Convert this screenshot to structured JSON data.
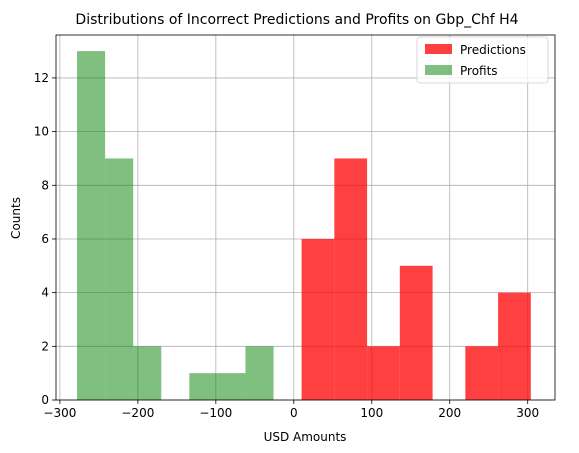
{
  "chart_data": {
    "type": "bar",
    "title": "Distributions of Incorrect Predictions and Profits on Gbp_Chf H4",
    "xlabel": "USD Amounts",
    "ylabel": "Counts",
    "xlim": [
      -305,
      335
    ],
    "ylim": [
      0,
      13.6
    ],
    "xticks": [
      -300,
      -200,
      -100,
      0,
      100,
      200,
      300
    ],
    "xtick_labels": [
      "−300",
      "−200",
      "−100",
      "0",
      "100",
      "200",
      "300"
    ],
    "yticks": [
      0,
      2,
      4,
      6,
      8,
      10,
      12
    ],
    "ytick_labels": [
      "0",
      "2",
      "4",
      "6",
      "8",
      "10",
      "12"
    ],
    "grid": true,
    "legend_position": "top-right",
    "series": [
      {
        "name": "Predictions",
        "color": "#ff0000",
        "alpha": 0.75,
        "bins": [
          {
            "x0": 10,
            "x1": 52,
            "count": 6
          },
          {
            "x0": 52,
            "x1": 94,
            "count": 9
          },
          {
            "x0": 94,
            "x1": 136,
            "count": 2
          },
          {
            "x0": 136,
            "x1": 178,
            "count": 5
          },
          {
            "x0": 178,
            "x1": 220,
            "count": 0
          },
          {
            "x0": 220,
            "x1": 262,
            "count": 2
          },
          {
            "x0": 262,
            "x1": 304,
            "count": 4
          }
        ]
      },
      {
        "name": "Profits",
        "color": "#008000",
        "alpha": 0.5,
        "bins": [
          {
            "x0": -278,
            "x1": -242,
            "count": 13
          },
          {
            "x0": -242,
            "x1": -206,
            "count": 9
          },
          {
            "x0": -206,
            "x1": -170,
            "count": 2
          },
          {
            "x0": -170,
            "x1": -134,
            "count": 0
          },
          {
            "x0": -134,
            "x1": -98,
            "count": 1
          },
          {
            "x0": -98,
            "x1": -62,
            "count": 1
          },
          {
            "x0": -62,
            "x1": -26,
            "count": 2
          }
        ]
      }
    ]
  }
}
